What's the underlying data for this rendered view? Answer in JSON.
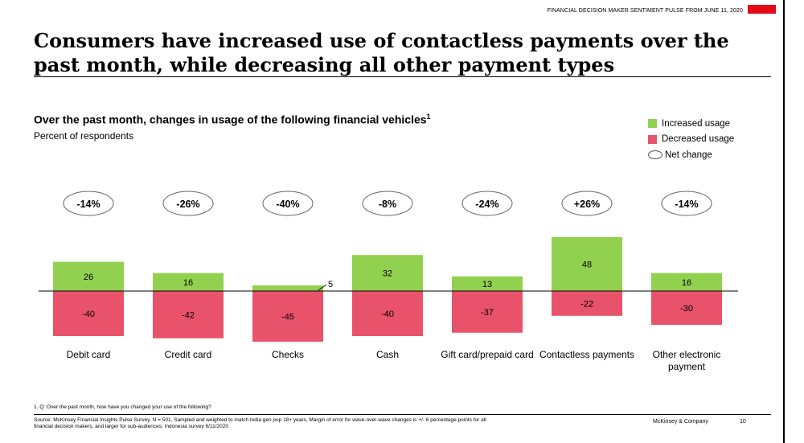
{
  "header": {
    "text": "FINANCIAL DECISION MAKER SENTIMENT PULSE FROM JUNE 11, 2020",
    "flag_colors": [
      "#e30a17",
      "#ffffff"
    ]
  },
  "title": "Consumers have increased use of contactless payments over the past month, while decreasing all other payment types",
  "subtitle": "Over the past month, changes in usage of the following financial vehicles",
  "subtitle_footnote_mark": "1",
  "subcaption": "Percent of respondents",
  "legend": {
    "increased": "Increased usage",
    "decreased": "Decreased usage",
    "net": "Net change"
  },
  "colors": {
    "increased": "#92d050",
    "decreased": "#e8536b"
  },
  "chart_data": {
    "type": "bar",
    "categories": [
      "Debit card",
      "Credit card",
      "Checks",
      "Cash",
      "Gift card/prepaid card",
      "Contactless payments",
      "Other electronic payment"
    ],
    "series": [
      {
        "name": "Increased usage",
        "values": [
          26,
          16,
          5,
          32,
          13,
          48,
          16
        ]
      },
      {
        "name": "Decreased usage",
        "values": [
          -40,
          -42,
          -45,
          -40,
          -37,
          -22,
          -30
        ]
      }
    ],
    "net_change": [
      "-14%",
      "-26%",
      "-40%",
      "-8%",
      "-24%",
      "+26%",
      "-14%"
    ],
    "title": "Over the past month, changes in usage of the following financial vehicles",
    "ylabel": "Percent of respondents",
    "stacked": "diverging",
    "legend_position": "top-right"
  },
  "footnote": "1. Q: Over the past month, how have you changed your use of the following?",
  "source": "Source: McKinsey Financial Insights Pulse Survey, N = 501, Sampled and weighted to match India gen pop 18+ years, Margin of error for wave-over-wave changes is +/- 6 percentage points for all financial decision makers, and larger for sub-audiences; Indonesia survey 6/11/2020",
  "brand": "McKinsey & Company",
  "page_number": "10"
}
